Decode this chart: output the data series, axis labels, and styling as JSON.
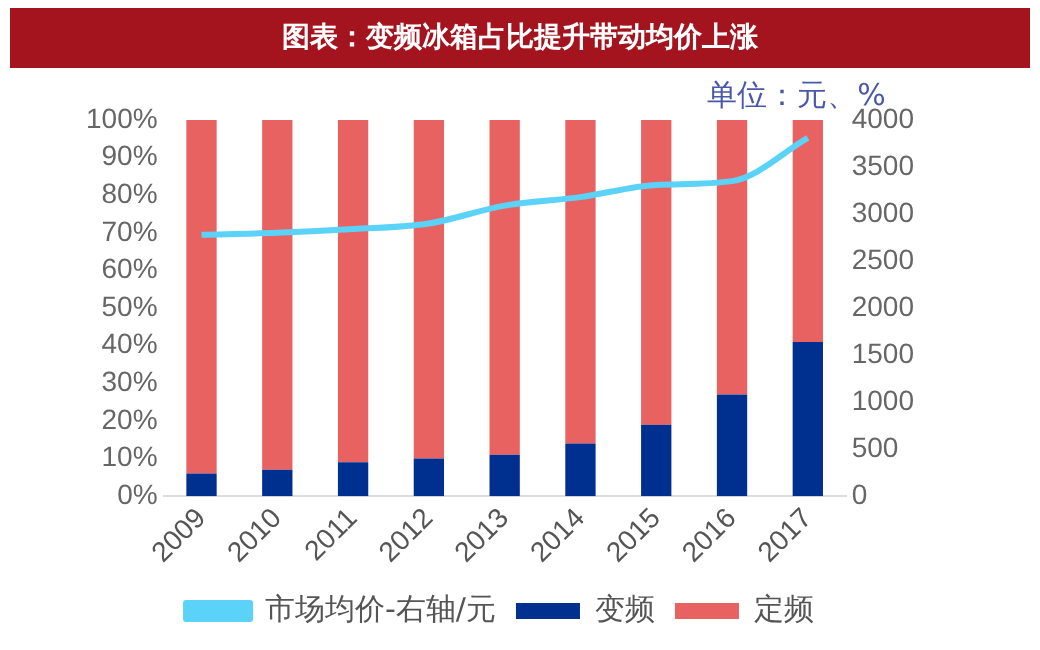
{
  "chart_data": {
    "type": "bar",
    "title": "图表：变频冰箱占比提升带动均价上涨",
    "stacked": true,
    "categories": [
      "2009",
      "2010",
      "2011",
      "2012",
      "2013",
      "2014",
      "2015",
      "2016",
      "2017"
    ],
    "series": [
      {
        "name": "变频",
        "color": "#00308f",
        "values": [
          6,
          7,
          9,
          10,
          11,
          14,
          19,
          27,
          41
        ]
      },
      {
        "name": "定频",
        "color": "#e86262",
        "values": [
          94,
          93,
          91,
          90,
          89,
          86,
          81,
          73,
          59
        ]
      },
      {
        "name": "市场均价-右轴/元",
        "type": "line",
        "axis": "y2",
        "color": "#5bd3f8",
        "values": [
          2780,
          2800,
          2840,
          2900,
          3090,
          3180,
          3310,
          3350,
          3810
        ]
      }
    ],
    "ylim": [
      0,
      100
    ],
    "yticks": [
      {
        "value": 0,
        "label": "0%"
      },
      {
        "value": 10,
        "label": "10%"
      },
      {
        "value": 20,
        "label": "20%"
      },
      {
        "value": 30,
        "label": "30%"
      },
      {
        "value": 40,
        "label": "40%"
      },
      {
        "value": 50,
        "label": "50%"
      },
      {
        "value": 60,
        "label": "60%"
      },
      {
        "value": 70,
        "label": "70%"
      },
      {
        "value": 80,
        "label": "80%"
      },
      {
        "value": 90,
        "label": "90%"
      },
      {
        "value": 100,
        "label": "100%"
      }
    ],
    "y2lim": [
      0,
      4000
    ],
    "y2ticks": [
      0,
      500,
      1000,
      1500,
      2000,
      2500,
      3000,
      3500,
      4000
    ],
    "annotations": [
      "单位：元、%"
    ],
    "grid": false,
    "legend": "bottom",
    "marker": "none"
  }
}
